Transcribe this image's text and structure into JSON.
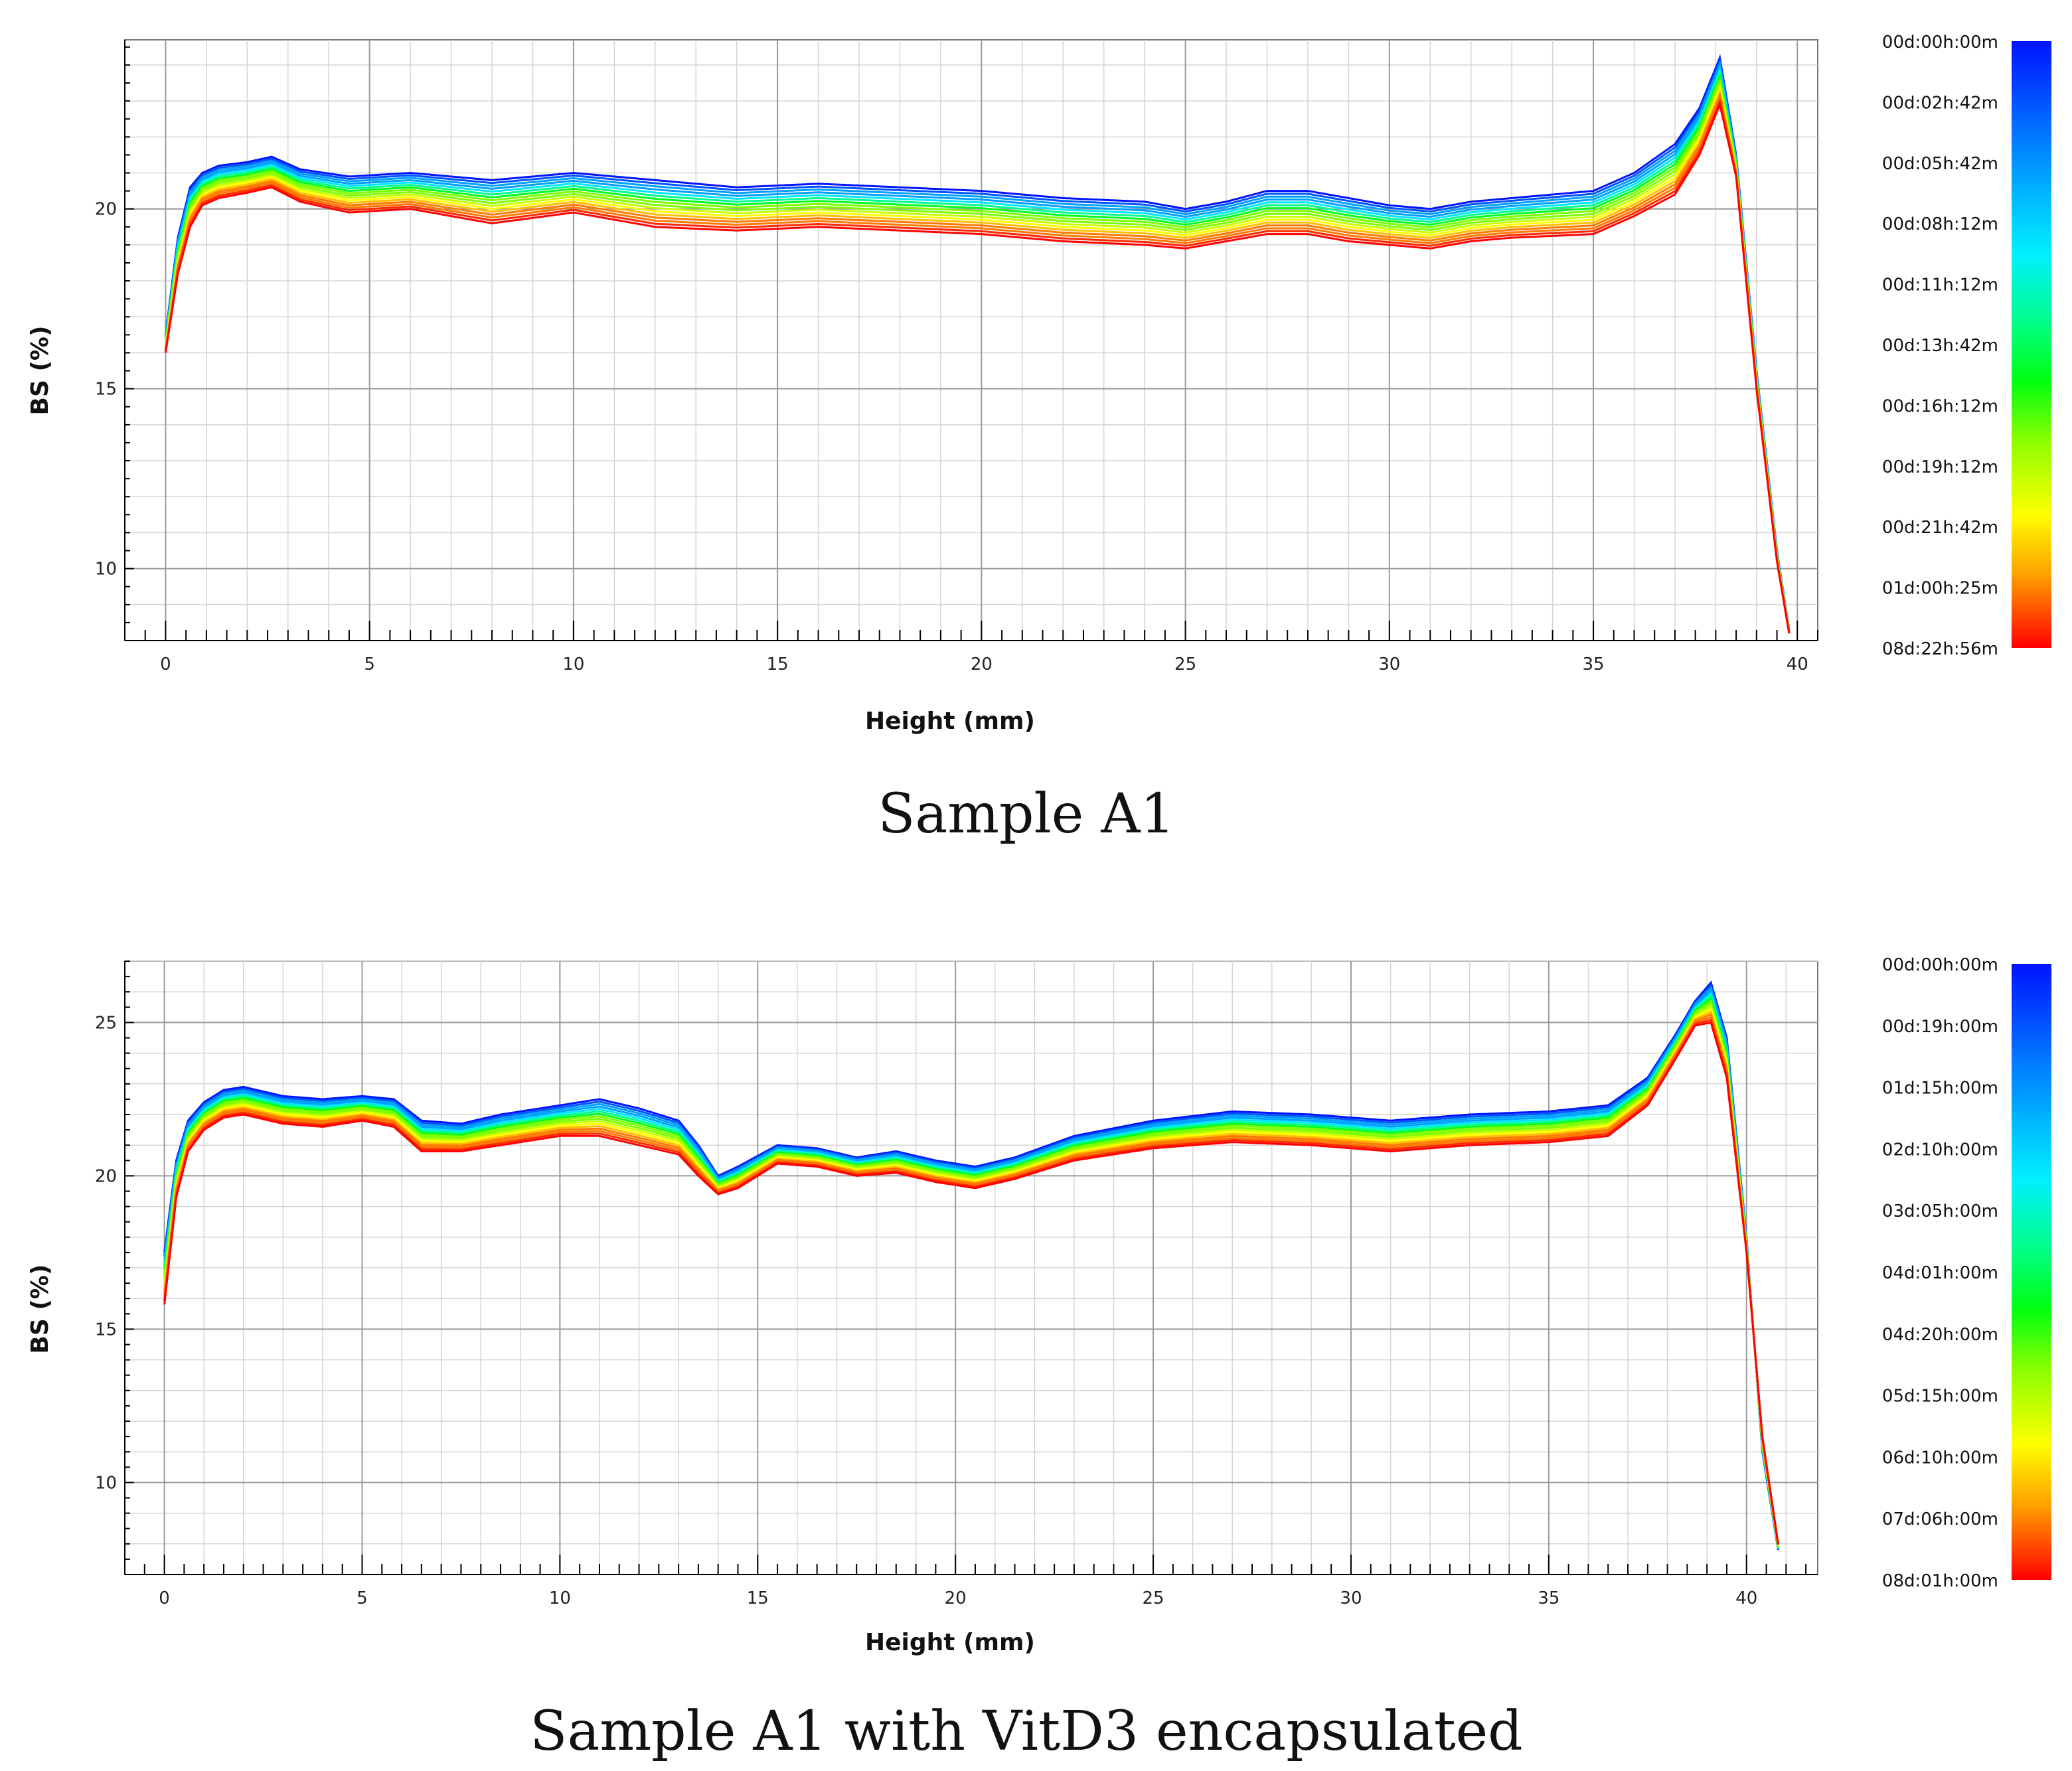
{
  "chart_data": [
    {
      "type": "line",
      "caption": "Sample A1",
      "xlabel": "Height (mm)",
      "ylabel": "BS (%)",
      "xlim": [
        -1,
        40.5
      ],
      "ylim": [
        8,
        24.7
      ],
      "x_ticks": [
        0,
        5,
        10,
        15,
        20,
        25,
        30,
        35,
        40
      ],
      "y_ticks": [
        10,
        15,
        20
      ],
      "grid": true,
      "legend": {
        "placement": "right",
        "labels": [
          "00d:00h:00m",
          "00d:02h:42m",
          "00d:05h:42m",
          "00d:08h:12m",
          "00d:11h:12m",
          "00d:13h:42m",
          "00d:16h:12m",
          "00d:19h:12m",
          "00d:21h:42m",
          "01d:00h:25m",
          "08d:22h:56m"
        ]
      },
      "series_count": 16,
      "profile_first": {
        "x": [
          0,
          0.3,
          0.6,
          0.9,
          1.3,
          2,
          2.6,
          3.3,
          4.5,
          6,
          8,
          10,
          12,
          14,
          16,
          18,
          20,
          22,
          24,
          25,
          26,
          27,
          28,
          29,
          30,
          31,
          32,
          33,
          35,
          36,
          37,
          37.6,
          38.1,
          38.5,
          39,
          39.5,
          39.8
        ],
        "y": [
          16.5,
          19.2,
          20.6,
          21.0,
          21.2,
          21.3,
          21.45,
          21.1,
          20.9,
          21.0,
          20.8,
          21.0,
          20.8,
          20.6,
          20.7,
          20.6,
          20.5,
          20.3,
          20.2,
          20.0,
          20.2,
          20.5,
          20.5,
          20.3,
          20.1,
          20.0,
          20.2,
          20.3,
          20.5,
          21.0,
          21.8,
          22.8,
          24.2,
          21.5,
          15.5,
          10.5,
          8.3
        ]
      },
      "profile_last": {
        "x": [
          0,
          0.3,
          0.6,
          0.9,
          1.3,
          2,
          2.6,
          3.3,
          4.5,
          6,
          8,
          10,
          12,
          14,
          16,
          18,
          20,
          22,
          24,
          25,
          26,
          27,
          28,
          29,
          30,
          31,
          32,
          33,
          35,
          36,
          37,
          37.6,
          38.1,
          38.5,
          39,
          39.5,
          39.8
        ],
        "y": [
          16.0,
          18.2,
          19.5,
          20.1,
          20.3,
          20.45,
          20.6,
          20.2,
          19.9,
          20.0,
          19.6,
          19.9,
          19.5,
          19.4,
          19.5,
          19.4,
          19.3,
          19.1,
          19.0,
          18.9,
          19.1,
          19.3,
          19.3,
          19.1,
          19.0,
          18.9,
          19.1,
          19.2,
          19.3,
          19.8,
          20.4,
          21.5,
          22.9,
          20.9,
          15.0,
          10.2,
          8.2
        ]
      }
    },
    {
      "type": "line",
      "caption": "Sample A1 with VitD3 encapsulated",
      "xlabel": "Height (mm)",
      "ylabel": "BS (%)",
      "xlim": [
        -1,
        41.8
      ],
      "ylim": [
        7,
        27
      ],
      "x_ticks": [
        0,
        5,
        10,
        15,
        20,
        25,
        30,
        35,
        40
      ],
      "y_ticks": [
        10,
        15,
        20,
        25
      ],
      "grid": true,
      "legend": {
        "placement": "right",
        "labels": [
          "00d:00h:00m",
          "00d:19h:00m",
          "01d:15h:00m",
          "02d:10h:00m",
          "03d:05h:00m",
          "04d:01h:00m",
          "04d:20h:00m",
          "05d:15h:00m",
          "06d:10h:00m",
          "07d:06h:00m",
          "08d:01h:00m"
        ]
      },
      "series_count": 16,
      "profile_first": {
        "x": [
          0,
          0.3,
          0.6,
          1,
          1.5,
          2,
          3,
          4,
          5,
          5.8,
          6.5,
          7.5,
          8.5,
          10,
          11,
          12,
          13,
          13.5,
          14,
          14.5,
          15.5,
          16.5,
          17.5,
          18.5,
          19.5,
          20.5,
          21.5,
          23,
          25,
          27,
          29,
          31,
          33,
          35,
          36.5,
          37.5,
          38.2,
          38.7,
          39.1,
          39.5,
          40,
          40.4,
          40.8
        ],
        "y": [
          17.5,
          20.5,
          21.8,
          22.4,
          22.8,
          22.9,
          22.6,
          22.5,
          22.6,
          22.5,
          21.8,
          21.7,
          22.0,
          22.3,
          22.5,
          22.2,
          21.8,
          21.0,
          20.0,
          20.3,
          21.0,
          20.9,
          20.6,
          20.8,
          20.5,
          20.3,
          20.6,
          21.3,
          21.8,
          22.1,
          22.0,
          21.8,
          22.0,
          22.1,
          22.3,
          23.2,
          24.6,
          25.7,
          26.3,
          24.5,
          18.0,
          11.0,
          7.8
        ]
      },
      "profile_last": {
        "x": [
          0,
          0.3,
          0.6,
          1,
          1.5,
          2,
          3,
          4,
          5,
          5.8,
          6.5,
          7.5,
          8.5,
          10,
          11,
          12,
          13,
          13.5,
          14,
          14.5,
          15.5,
          16.5,
          17.5,
          18.5,
          19.5,
          20.5,
          21.5,
          23,
          25,
          27,
          29,
          31,
          33,
          35,
          36.5,
          37.5,
          38.2,
          38.7,
          39.1,
          39.5,
          40,
          40.4,
          40.8
        ],
        "y": [
          15.8,
          19.3,
          20.8,
          21.5,
          21.9,
          22.0,
          21.7,
          21.6,
          21.8,
          21.6,
          20.8,
          20.8,
          21.0,
          21.3,
          21.3,
          21.0,
          20.7,
          20.0,
          19.4,
          19.6,
          20.4,
          20.3,
          20.0,
          20.1,
          19.8,
          19.6,
          19.9,
          20.5,
          20.9,
          21.1,
          21.0,
          20.8,
          21.0,
          21.1,
          21.3,
          22.3,
          23.8,
          24.9,
          25.0,
          23.2,
          17.5,
          11.5,
          8.0
        ]
      }
    }
  ],
  "colors": {
    "scale": [
      "#0014ff",
      "#0055ff",
      "#00a0ff",
      "#00e6ff",
      "#00ff90",
      "#00ff20",
      "#7dff00",
      "#c8ff00",
      "#ffff00",
      "#ffbe00",
      "#ff7800",
      "#ff2800",
      "#ff0000"
    ],
    "grid": "#d4d4d4",
    "major_grid": "#9a9a9a",
    "axis": "#000000"
  }
}
